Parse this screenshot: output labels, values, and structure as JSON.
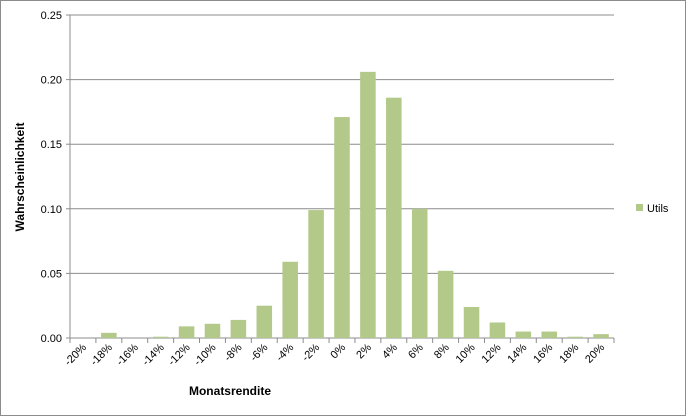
{
  "chart_data": {
    "type": "bar",
    "x_label": "Monatsrendite",
    "y_label": "Wahrscheinlichkeit",
    "categories": [
      "-20%",
      "-18%",
      "-16%",
      "-14%",
      "-12%",
      "-10%",
      "-8%",
      "-6%",
      "-4%",
      "-2%",
      "0%",
      "2%",
      "4%",
      "6%",
      "8%",
      "10%",
      "12%",
      "14%",
      "16%",
      "18%",
      "20%"
    ],
    "series": [
      {
        "name": "Utils",
        "color": "#b3c98a",
        "values": [
          0,
          0.004,
          0,
          0.001,
          0.009,
          0.011,
          0.014,
          0.025,
          0.059,
          0.099,
          0.171,
          0.206,
          0.186,
          0.1,
          0.052,
          0.024,
          0.012,
          0.005,
          0.005,
          0.001,
          0.003
        ]
      }
    ],
    "ylim": [
      0,
      0.25
    ],
    "yticks": [
      {
        "value": 0,
        "label": "0.00"
      },
      {
        "value": 0.05,
        "label": "0.05"
      },
      {
        "value": 0.1,
        "label": "0.10"
      },
      {
        "value": 0.15,
        "label": "0.15"
      },
      {
        "value": 0.2,
        "label": "0.20"
      },
      {
        "value": 0.25,
        "label": "0.25"
      }
    ],
    "grid": true,
    "legend": "right"
  }
}
